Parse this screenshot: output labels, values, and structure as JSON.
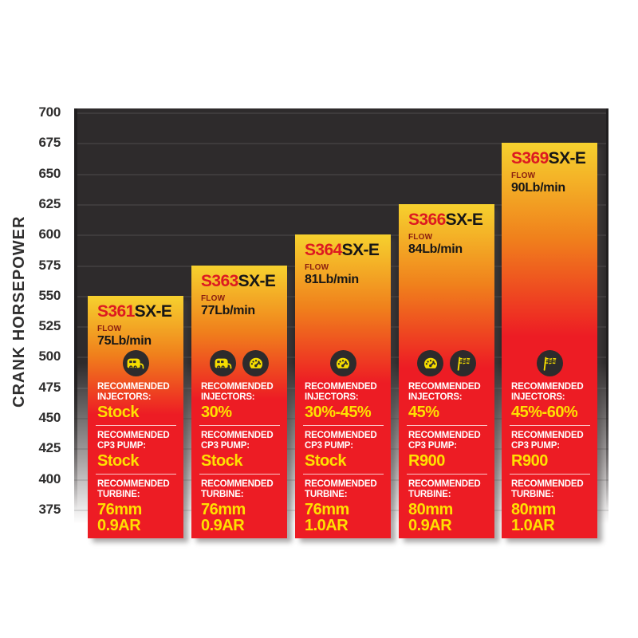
{
  "chart_data": {
    "type": "bar",
    "title": "",
    "ylabel": "CRANK HORSEPOWER",
    "xlabel": "",
    "ylim": [
      375,
      700
    ],
    "yticks": [
      700,
      675,
      650,
      625,
      600,
      575,
      550,
      525,
      500,
      475,
      450,
      425,
      400,
      375
    ],
    "grid": "horizontal",
    "legend": "none",
    "categories": [
      "S361SX-E",
      "S363SX-E",
      "S364SX-E",
      "S366SX-E",
      "S369SX-E"
    ],
    "values": [
      550,
      575,
      600,
      625,
      675
    ],
    "bars": [
      {
        "model_highlight": "S361",
        "model_rest": "SX-E",
        "flow_label": "FLOW",
        "flow_value": "75Lb/min",
        "crank_hp": 550,
        "icons": [
          "camper-icon"
        ],
        "sections": [
          {
            "label": [
              "RECOMMENDED",
              "INJECTORS:"
            ],
            "value": [
              "Stock"
            ]
          },
          {
            "label": [
              "RECOMMENDED",
              "CP3 PUMP:"
            ],
            "value": [
              "Stock"
            ]
          },
          {
            "label": [
              "RECOMMENDED",
              "TURBINE:"
            ],
            "value": [
              "76mm",
              "0.9AR"
            ]
          }
        ]
      },
      {
        "model_highlight": "S363",
        "model_rest": "SX-E",
        "flow_label": "FLOW",
        "flow_value": "77Lb/min",
        "crank_hp": 575,
        "icons": [
          "camper-icon",
          "gauge-icon"
        ],
        "sections": [
          {
            "label": [
              "RECOMMENDED",
              "INJECTORS:"
            ],
            "value": [
              "30%"
            ]
          },
          {
            "label": [
              "RECOMMENDED",
              "CP3 PUMP:"
            ],
            "value": [
              "Stock"
            ]
          },
          {
            "label": [
              "RECOMMENDED",
              "TURBINE:"
            ],
            "value": [
              "76mm",
              "0.9AR"
            ]
          }
        ]
      },
      {
        "model_highlight": "S364",
        "model_rest": "SX-E",
        "flow_label": "FLOW",
        "flow_value": "81Lb/min",
        "crank_hp": 600,
        "icons": [
          "gauge-icon"
        ],
        "sections": [
          {
            "label": [
              "RECOMMENDED",
              "INJECTORS:"
            ],
            "value": [
              "30%-45%"
            ]
          },
          {
            "label": [
              "RECOMMENDED",
              "CP3 PUMP:"
            ],
            "value": [
              "Stock"
            ]
          },
          {
            "label": [
              "RECOMMENDED",
              "TURBINE:"
            ],
            "value": [
              "76mm",
              "1.0AR"
            ]
          }
        ]
      },
      {
        "model_highlight": "S366",
        "model_rest": "SX-E",
        "flow_label": "FLOW",
        "flow_value": "84Lb/min",
        "crank_hp": 625,
        "icons": [
          "gauge-icon",
          "race-flag-icon"
        ],
        "sections": [
          {
            "label": [
              "RECOMMENDED",
              "INJECTORS:"
            ],
            "value": [
              "45%"
            ]
          },
          {
            "label": [
              "RECOMMENDED",
              "CP3 PUMP:"
            ],
            "value": [
              "R900"
            ]
          },
          {
            "label": [
              "RECOMMENDED",
              "TURBINE:"
            ],
            "value": [
              "80mm",
              "0.9AR"
            ]
          }
        ]
      },
      {
        "model_highlight": "S369",
        "model_rest": "SX-E",
        "flow_label": "FLOW",
        "flow_value": "90Lb/min",
        "crank_hp": 675,
        "icons": [
          "race-flag-icon"
        ],
        "sections": [
          {
            "label": [
              "RECOMMENDED",
              "INJECTORS:"
            ],
            "value": [
              "45%-60%"
            ]
          },
          {
            "label": [
              "RECOMMENDED",
              "CP3 PUMP:"
            ],
            "value": [
              "R900"
            ]
          },
          {
            "label": [
              "RECOMMENDED",
              "TURBINE:"
            ],
            "value": [
              "80mm",
              "1.0AR"
            ]
          }
        ]
      }
    ]
  },
  "colors": {
    "page_background": "#ffffff",
    "plot_background": "#2e2b2c",
    "bar_yellow": "#f6d12e",
    "bar_orange": "#f0811c",
    "bar_red": "#ed1c24",
    "model_red": "#dd1a21",
    "model_dark": "#161616",
    "flow_label": "#8a1d10",
    "value_yellow": "#ffe000",
    "icon_circle_bg": "#2d2b2c",
    "icon_glyph": "#f5dd00",
    "section_label": "#ffffff",
    "axis_text": "#2f2e2e"
  }
}
